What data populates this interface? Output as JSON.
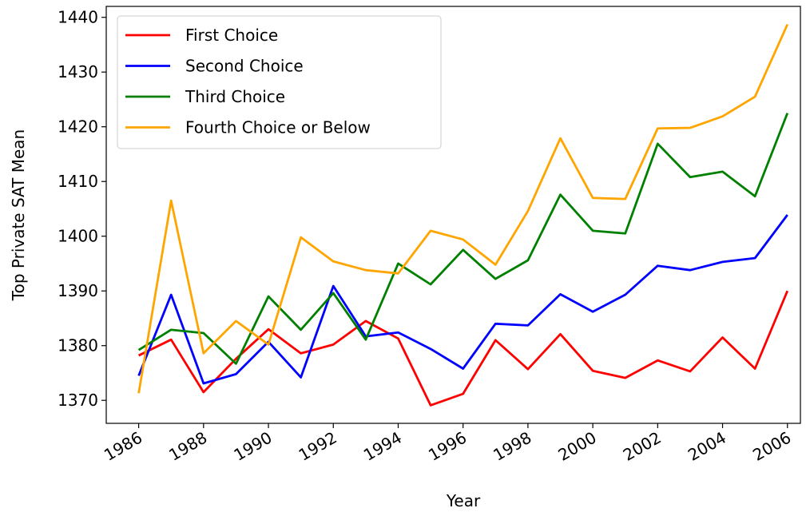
{
  "chart_data": {
    "type": "line",
    "x_label": "Year",
    "y_label": "Top Private SAT Mean",
    "x": [
      1986,
      1987,
      1988,
      1989,
      1990,
      1991,
      1992,
      1993,
      1994,
      1995,
      1996,
      1997,
      1998,
      1999,
      2000,
      2001,
      2002,
      2003,
      2004,
      2005,
      2006
    ],
    "series": [
      {
        "name": "First Choice",
        "color": "#ff0000",
        "values": [
          1378.2,
          1381.1,
          1371.5,
          1377.6,
          1383.0,
          1378.6,
          1380.2,
          1384.5,
          1381.3,
          1369.1,
          1371.2,
          1381.0,
          1375.7,
          1382.1,
          1375.4,
          1374.1,
          1377.3,
          1375.3,
          1381.5,
          1375.8,
          1390.0
        ]
      },
      {
        "name": "Second Choice",
        "color": "#0000ff",
        "values": [
          1374.5,
          1389.3,
          1373.1,
          1374.8,
          1380.7,
          1374.2,
          1390.9,
          1381.7,
          1382.4,
          1379.4,
          1375.8,
          1384.0,
          1383.7,
          1389.4,
          1386.2,
          1389.3,
          1394.6,
          1393.8,
          1395.3,
          1396.0,
          1403.9
        ]
      },
      {
        "name": "Third Choice",
        "color": "#008000",
        "values": [
          1379.2,
          1382.9,
          1382.3,
          1376.7,
          1389.0,
          1382.9,
          1389.6,
          1381.1,
          1395.0,
          1391.2,
          1397.5,
          1392.2,
          1395.6,
          1407.6,
          1401.0,
          1400.5,
          1416.9,
          1410.8,
          1411.8,
          1407.3,
          1422.5
        ]
      },
      {
        "name": "Fourth Choice or Below",
        "color": "#ffa500",
        "values": [
          1371.3,
          1406.5,
          1378.6,
          1384.5,
          1380.2,
          1399.8,
          1395.4,
          1393.8,
          1393.2,
          1401.0,
          1399.4,
          1394.8,
          1404.6,
          1417.9,
          1407.0,
          1406.8,
          1419.7,
          1419.8,
          1421.9,
          1425.5,
          1438.7
        ]
      }
    ],
    "xlim": [
      1985,
      2006.4
    ],
    "ylim": [
      1365.8,
      1442.0
    ],
    "xticks": [
      1986,
      1988,
      1990,
      1992,
      1994,
      1996,
      1998,
      2000,
      2002,
      2004,
      2006
    ],
    "yticks": [
      1370,
      1380,
      1390,
      1400,
      1410,
      1420,
      1430,
      1440
    ],
    "legend": "upper-left",
    "grid": false
  }
}
